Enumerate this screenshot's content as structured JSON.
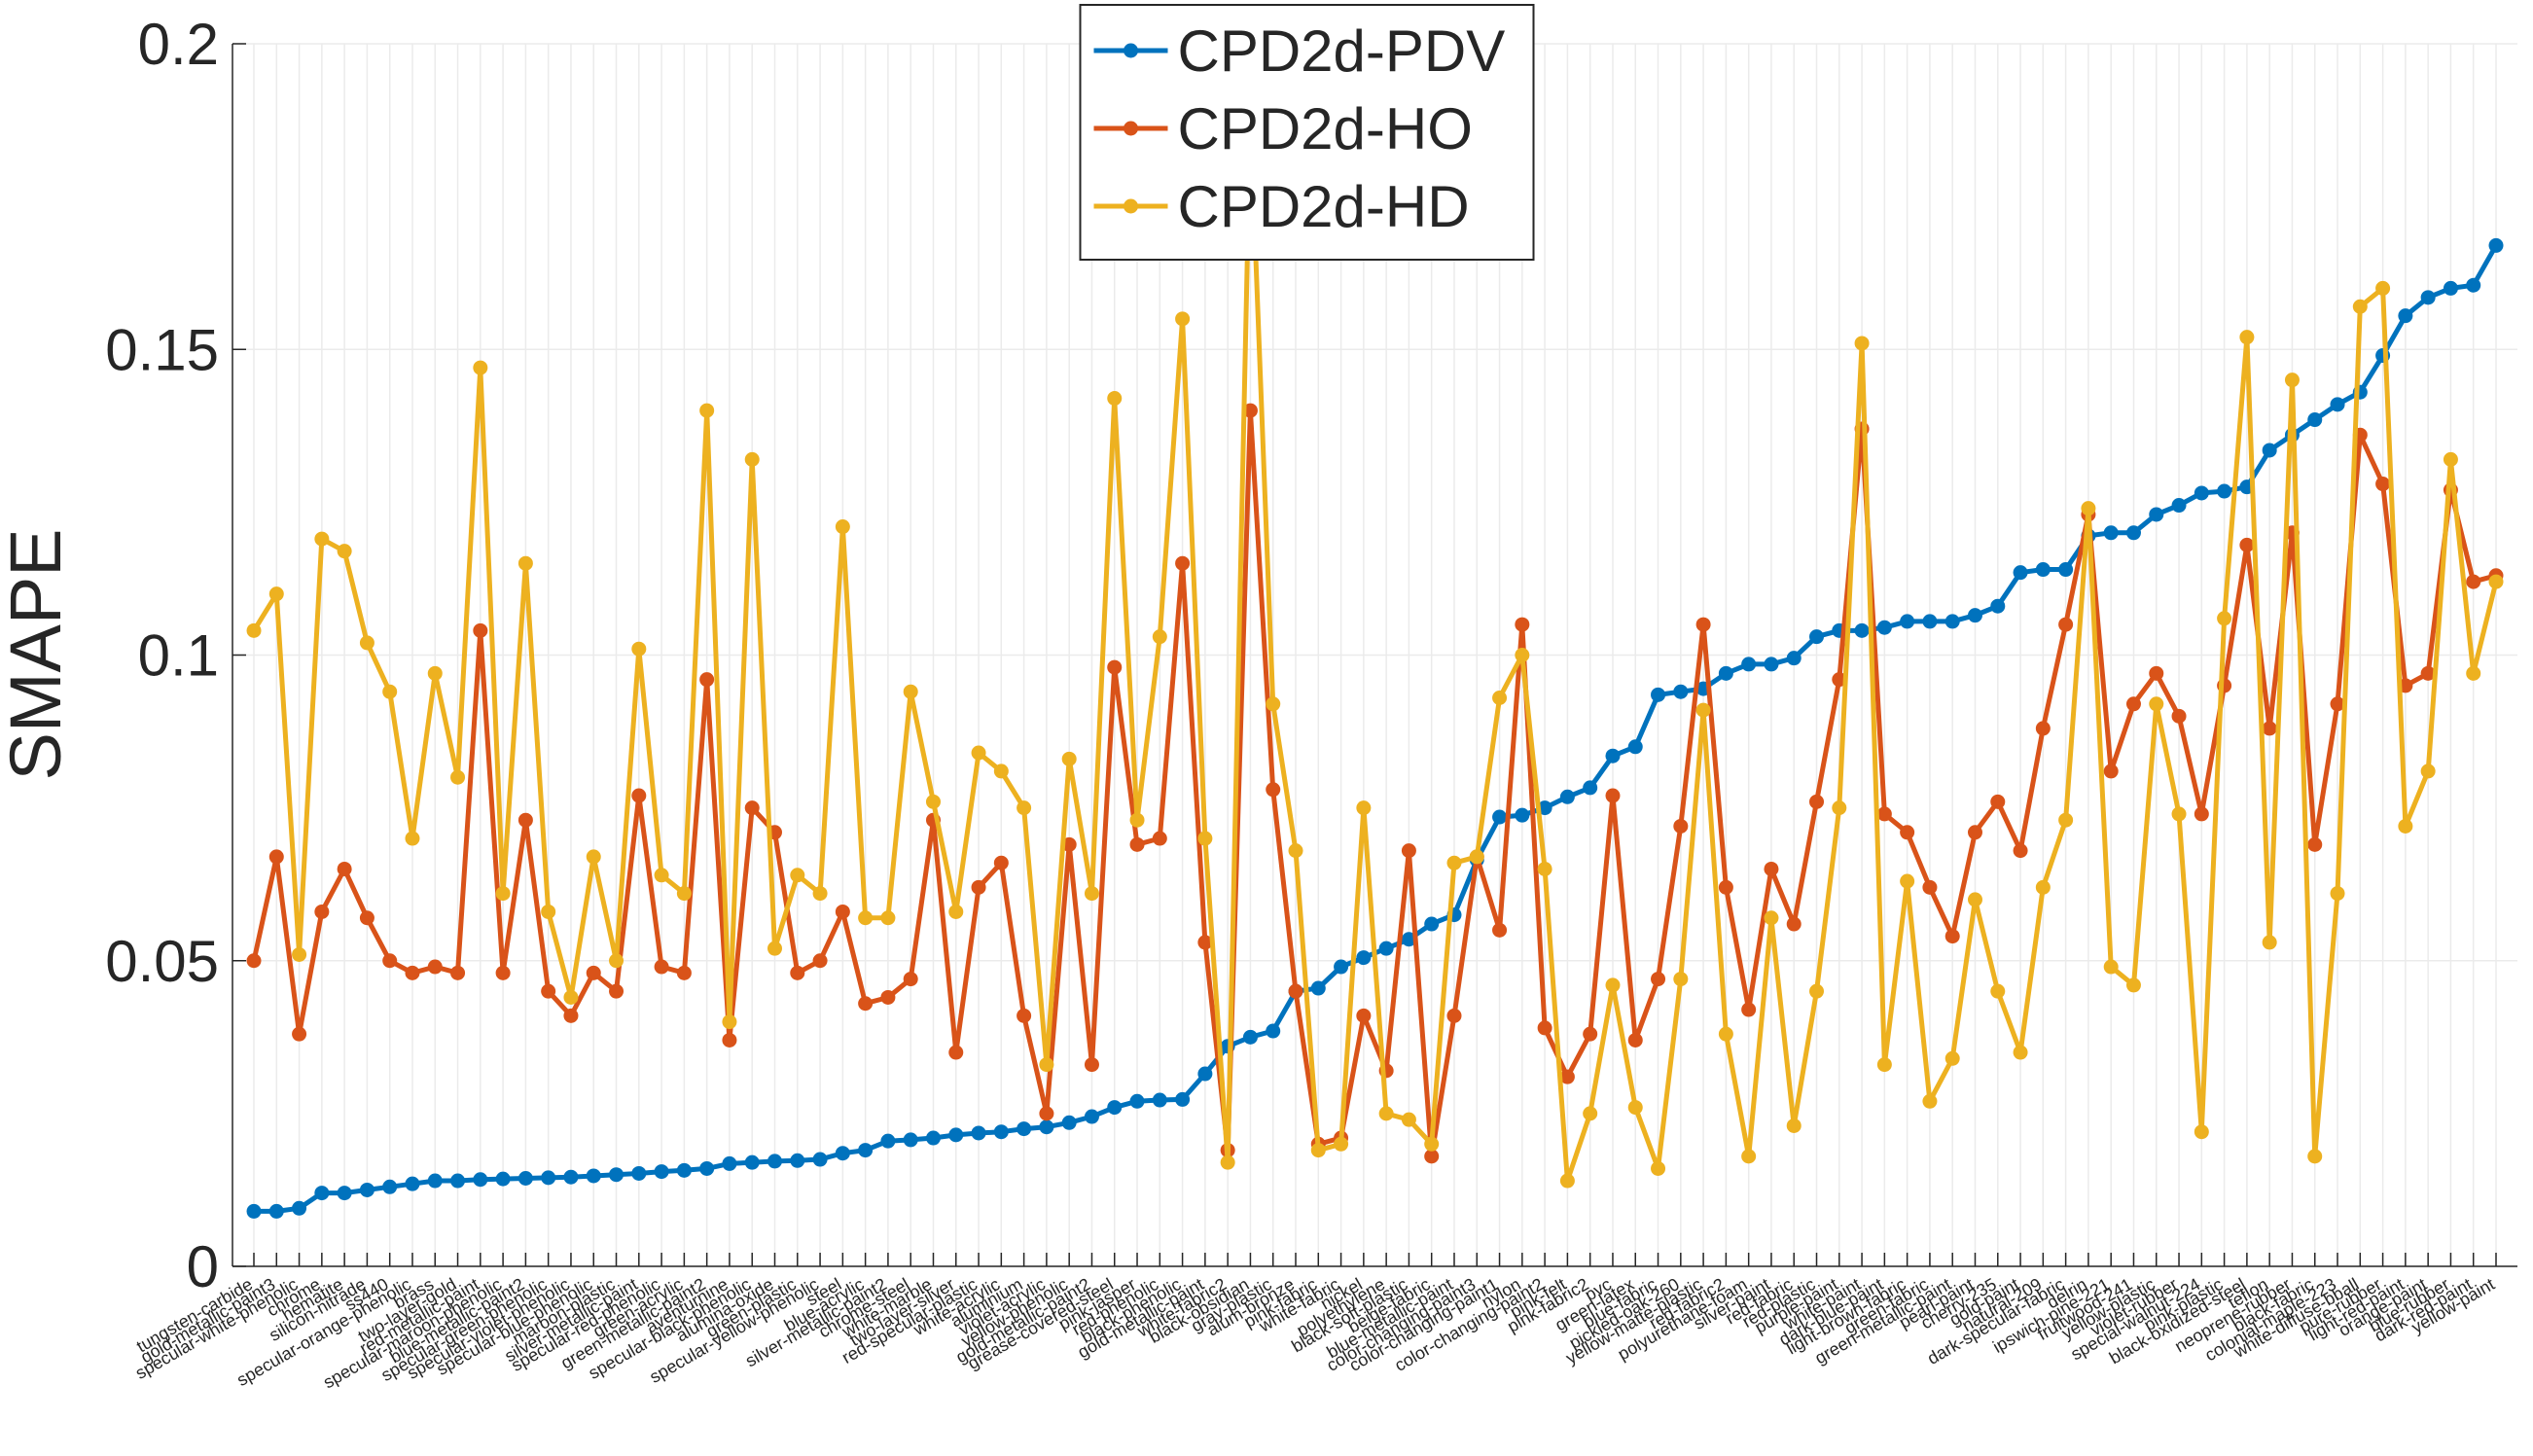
{
  "chart_data": {
    "type": "line",
    "ylabel": "SMAPE",
    "categories": [
      "tungsten-carbide",
      "gold-metallic-paint3",
      "specular-white-phenolic",
      "chrome",
      "hematite",
      "silicon-nitrade",
      "ss440",
      "specular-orange-phenolic",
      "brass",
      "two-layer-gold",
      "red-metallic-paint",
      "specular-maroon-phenolic",
      "blue-metallic-paint2",
      "specular-green-phenolic",
      "specular-violet-phenolic",
      "specular-blue-phenolic",
      "maroon-plastic",
      "silver-metallic-paint",
      "specular-red-phenolic",
      "green-acrylic",
      "green-metallic-paint2",
      "aventurnine",
      "specular-black-phenolic",
      "alumina-oxide",
      "green-plastic",
      "specular-yellow-phenolic",
      "steel",
      "blue-acrylic",
      "silver-metallic-paint2",
      "chrome-steel",
      "white-marble",
      "two-layer-silver",
      "red-specular-plastic",
      "white-acrylic",
      "aluminium",
      "violet-acrylic",
      "yellow-phenolic",
      "gold-metallic-paint2",
      "grease-covered-steel",
      "pink-jasper",
      "red-phenolic",
      "black-phenolic",
      "gold-metallic-paint",
      "white-fabric2",
      "black-obsidian",
      "gray-plastic",
      "alum-bronze",
      "pink-fabric",
      "white-fabric",
      "nickel",
      "polyethylene",
      "black-soft-plastic",
      "beige-fabric",
      "blue-metallic-paint",
      "color-changing-paint3",
      "color-changing-paint1",
      "nylon",
      "color-changing-paint2",
      "pink-felt",
      "pink-fabric2",
      "pvc",
      "green-latex",
      "blue-fabric",
      "pickled-oak-260",
      "yellow-matte-plastic",
      "red-fabric2",
      "polyurethane-foam",
      "silver-paint",
      "red-fabric",
      "red-plastic",
      "purple-paint",
      "white-paint",
      "dark-blue-paint",
      "light-brown-fabric",
      "green-fabric",
      "green-metallic-paint",
      "pearl-paint",
      "cherry-235",
      "gold-paint",
      "natural-209",
      "dark-specular-fabric",
      "delrin",
      "ipswich-pine-221",
      "fruitwood-241",
      "yellow-plastic",
      "violet-rubber",
      "special-walnut-224",
      "pink-plastic",
      "black-oxidized-steel",
      "teflon",
      "neoprene-rubber",
      "black-fabric",
      "colonial-maple-223",
      "white-diffuse-bball",
      "pure-rubber",
      "light-red-paint",
      "orange-paint",
      "blue-rubber",
      "dark-red-paint",
      "yellow-paint"
    ],
    "series": [
      {
        "name": "CPD2d-PDV",
        "color": "#0072BD",
        "values": [
          0.009,
          0.009,
          0.0095,
          0.012,
          0.012,
          0.0125,
          0.013,
          0.0135,
          0.014,
          0.014,
          0.0142,
          0.0143,
          0.0144,
          0.0145,
          0.0146,
          0.0148,
          0.015,
          0.0152,
          0.0155,
          0.0157,
          0.016,
          0.0168,
          0.017,
          0.0172,
          0.0173,
          0.0175,
          0.0185,
          0.019,
          0.0205,
          0.0207,
          0.021,
          0.0215,
          0.0218,
          0.022,
          0.0225,
          0.0228,
          0.0235,
          0.0245,
          0.026,
          0.027,
          0.0272,
          0.0273,
          0.0315,
          0.036,
          0.0375,
          0.0385,
          0.045,
          0.0455,
          0.049,
          0.0505,
          0.052,
          0.0535,
          0.056,
          0.0575,
          0.0665,
          0.0735,
          0.0738,
          0.075,
          0.0768,
          0.0783,
          0.0835,
          0.085,
          0.0935,
          0.094,
          0.0945,
          0.097,
          0.0985,
          0.0985,
          0.0995,
          0.103,
          0.104,
          0.104,
          0.1045,
          0.1055,
          0.1055,
          0.1055,
          0.1065,
          0.108,
          0.1135,
          0.114,
          0.114,
          0.1195,
          0.12,
          0.12,
          0.123,
          0.1245,
          0.1265,
          0.1268,
          0.1275,
          0.1335,
          0.136,
          0.1385,
          0.141,
          0.143,
          0.149,
          0.1555,
          0.1585,
          0.16,
          0.1605,
          0.167
        ]
      },
      {
        "name": "CPD2d-HO",
        "color": "#D95319",
        "values": [
          0.05,
          0.067,
          0.038,
          0.058,
          0.065,
          0.057,
          0.05,
          0.048,
          0.049,
          0.048,
          0.104,
          0.048,
          0.073,
          0.045,
          0.041,
          0.048,
          0.045,
          0.077,
          0.049,
          0.048,
          0.096,
          0.037,
          0.075,
          0.071,
          0.048,
          0.05,
          0.058,
          0.043,
          0.044,
          0.047,
          0.073,
          0.035,
          0.062,
          0.066,
          0.041,
          0.025,
          0.069,
          0.033,
          0.098,
          0.069,
          0.07,
          0.115,
          0.053,
          0.019,
          0.14,
          0.078,
          0.045,
          0.02,
          0.021,
          0.041,
          0.032,
          0.068,
          0.018,
          0.041,
          0.067,
          0.055,
          0.105,
          0.039,
          0.031,
          0.038,
          0.077,
          0.037,
          0.047,
          0.072,
          0.105,
          0.062,
          0.042,
          0.065,
          0.056,
          0.076,
          0.096,
          0.137,
          0.074,
          0.071,
          0.062,
          0.054,
          0.071,
          0.076,
          0.068,
          0.088,
          0.105,
          0.123,
          0.081,
          0.092,
          0.097,
          0.09,
          0.074,
          0.095,
          0.118,
          0.088,
          0.12,
          0.069,
          0.092,
          0.136,
          0.128,
          0.095,
          0.097,
          0.127,
          0.112,
          0.113
        ]
      },
      {
        "name": "CPD2d-HD",
        "color": "#EDB120",
        "values": [
          0.104,
          0.11,
          0.051,
          0.119,
          0.117,
          0.102,
          0.094,
          0.07,
          0.097,
          0.08,
          0.147,
          0.061,
          0.115,
          0.058,
          0.044,
          0.067,
          0.05,
          0.101,
          0.064,
          0.061,
          0.14,
          0.04,
          0.132,
          0.052,
          0.064,
          0.061,
          0.121,
          0.057,
          0.057,
          0.094,
          0.076,
          0.058,
          0.084,
          0.081,
          0.075,
          0.033,
          0.083,
          0.061,
          0.142,
          0.073,
          0.103,
          0.155,
          0.07,
          0.017,
          0.188,
          0.092,
          0.068,
          0.019,
          0.02,
          0.075,
          0.025,
          0.024,
          0.02,
          0.066,
          0.067,
          0.093,
          0.1,
          0.065,
          0.014,
          0.025,
          0.046,
          0.026,
          0.016,
          0.047,
          0.091,
          0.038,
          0.018,
          0.057,
          0.023,
          0.045,
          0.075,
          0.151,
          0.033,
          0.063,
          0.027,
          0.034,
          0.06,
          0.045,
          0.035,
          0.062,
          0.073,
          0.124,
          0.049,
          0.046,
          0.092,
          0.074,
          0.022,
          0.106,
          0.152,
          0.053,
          0.145,
          0.018,
          0.061,
          0.157,
          0.16,
          0.072,
          0.081,
          0.132,
          0.097,
          0.112
        ]
      }
    ],
    "ylim": [
      0,
      0.2
    ],
    "yticks": [
      0,
      0.05,
      0.1,
      0.15,
      0.2
    ],
    "grid": true,
    "legend": "north"
  }
}
